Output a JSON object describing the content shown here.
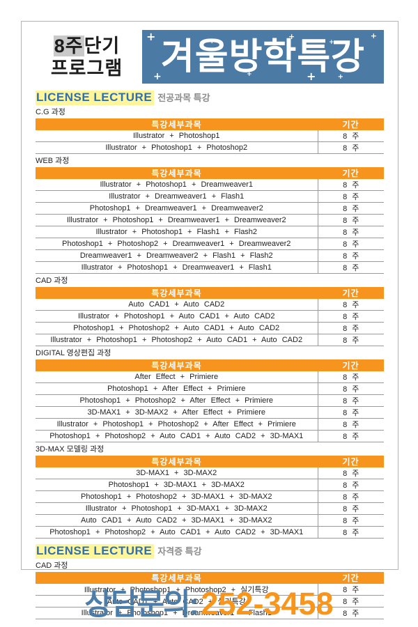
{
  "header": {
    "program": {
      "line1_highlight": "8주",
      "line1_rest": "단기",
      "line2": "프로그램"
    },
    "banner_title": "겨울방학특강",
    "sparkle_char": "+"
  },
  "sections": [
    {
      "title": "LICENSE LECTURE",
      "subtitle": "전공과목 특강",
      "courses": [
        {
          "name": "C.G 과정",
          "columns": [
            "특강세부과목",
            "기간"
          ],
          "rows": [
            [
              "Illustrator + Photoshop1",
              "8 주"
            ],
            [
              "Illustrator + Photoshop1 + Photoshop2",
              "8 주"
            ]
          ]
        },
        {
          "name": "WEB 과정",
          "columns": [
            "특강세부과목",
            "기간"
          ],
          "rows": [
            [
              "Illustrator + Photoshop1 + Dreamweaver1",
              "8 주"
            ],
            [
              "Illustrator + Dreamweaver1 + Flash1",
              "8 주"
            ],
            [
              "Photoshop1 + Dreamweaver1 + Dreamweaver2",
              "8 주"
            ],
            [
              "Illustrator + Photoshop1 + Dreamweaver1 + Dreamweaver2",
              "8 주"
            ],
            [
              "Illustrator + Photoshop1 + Flash1 + Flash2",
              "8 주"
            ],
            [
              "Photoshop1 + Photoshop2 + Dreamweaver1 + Dreamweaver2",
              "8 주"
            ],
            [
              "Dreamweaver1 + Dreamweaver2 + Flash1 + Flash2",
              "8 주"
            ],
            [
              "Illustrator + Photoshop1 + Dreamweaver1 + Flash1",
              "8 주"
            ]
          ]
        },
        {
          "name": "CAD 과정",
          "columns": [
            "특강세부과목",
            "기간"
          ],
          "rows": [
            [
              "Auto CAD1 + Auto CAD2",
              "8 주"
            ],
            [
              "Illustrator + Photoshop1 + Auto CAD1 + Auto CAD2",
              "8 주"
            ],
            [
              "Photoshop1 + Photoshop2 + Auto CAD1 + Auto CAD2",
              "8 주"
            ],
            [
              "Illustrator + Photoshop1 + Photoshop2 + Auto CAD1 + Auto CAD2",
              "8 주"
            ]
          ]
        },
        {
          "name": "DIGITAL 영상편집 과정",
          "columns": [
            "특강세부과목",
            "기간"
          ],
          "rows": [
            [
              "After Effect + Primiere",
              "8 주"
            ],
            [
              "Photoshop1 + After Effect + Primiere",
              "8 주"
            ],
            [
              "Photoshop1 + Photoshop2 + After Effect + Primiere",
              "8 주"
            ],
            [
              "3D-MAX1 + 3D-MAX2 + After Effect + Primiere",
              "8 주"
            ],
            [
              "Illustrator + Photoshop1 + Photoshop2 + After Effect + Primiere",
              "8 주"
            ],
            [
              "Photoshop1 + Photoshop2 + Auto CAD1 + Auto CAD2 + 3D-MAX1",
              "8 주"
            ]
          ]
        },
        {
          "name": "3D-MAX 모델링 과정",
          "columns": [
            "특강세부과목",
            "기간"
          ],
          "rows": [
            [
              "3D-MAX1 + 3D-MAX2",
              "8 주"
            ],
            [
              "Photoshop1 + 3D-MAX1 + 3D-MAX2",
              "8 주"
            ],
            [
              "Photoshop1 + Photoshop2 + 3D-MAX1 + 3D-MAX2",
              "8 주"
            ],
            [
              "Illustrator + Photoshop1 + 3D-MAX1 + 3D-MAX2",
              "8 주"
            ],
            [
              "Auto CAD1 + Auto CAD2 + 3D-MAX1 + 3D-MAX2",
              "8 주"
            ],
            [
              "Photoshop1 + Photoshop2 + Auto CAD1 + Auto CAD2 + 3D-MAX1",
              "8 주"
            ]
          ]
        }
      ]
    },
    {
      "title": "LICENSE LECTURE",
      "subtitle": "자격증 특강",
      "courses": [
        {
          "name": "CAD 과정",
          "columns": [
            "특강세부과목",
            "기간"
          ],
          "rows": [
            [
              "Illustrator + Photoshop1 + Photoshop2 + 실기특강",
              "8 주"
            ],
            [
              "Auto CAD1 + Auto CAD2 + 실기특강",
              "8 주"
            ],
            [
              "Illustrator + Photoshop1 + Dreamweaver1 + Flash1",
              "8 주"
            ]
          ]
        }
      ]
    }
  ],
  "footer": {
    "label": "상담문의:",
    "phone": "252-3458"
  },
  "colors": {
    "banner_blue": "#4b7aa5",
    "table_header_orange": "#f7941e",
    "section_highlight_yellow": "#fff59b",
    "section_title_blue": "#2f6fad",
    "footer_blue": "#4b7da8",
    "footer_orange": "#f8951c"
  }
}
